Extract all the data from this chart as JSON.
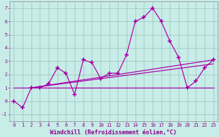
{
  "xlabel": "Windchill (Refroidissement éolien,°C)",
  "bg_color": "#c8ece8",
  "grid_color": "#a0c8c4",
  "line_color": "#aa00aa",
  "xlim": [
    -0.5,
    23.5
  ],
  "ylim": [
    -1.5,
    7.5
  ],
  "xticks": [
    0,
    1,
    2,
    3,
    4,
    5,
    6,
    7,
    8,
    9,
    10,
    11,
    12,
    13,
    14,
    15,
    16,
    17,
    18,
    19,
    20,
    21,
    22,
    23
  ],
  "yticks": [
    -1,
    0,
    1,
    2,
    3,
    4,
    5,
    6,
    7
  ],
  "scatter_x": [
    0,
    1,
    2,
    3,
    4,
    5,
    6,
    7,
    8,
    9,
    10,
    11,
    12,
    13,
    14,
    15,
    16,
    17,
    18,
    19,
    20,
    21,
    22,
    23
  ],
  "scatter_y": [
    0.0,
    -0.5,
    1.0,
    1.0,
    1.3,
    2.5,
    2.1,
    0.5,
    3.1,
    2.9,
    1.7,
    2.1,
    2.1,
    3.5,
    6.0,
    6.3,
    7.0,
    6.0,
    4.5,
    3.3,
    1.0,
    1.5,
    2.5,
    3.1
  ],
  "trend1_x": [
    0,
    23
  ],
  "trend1_y": [
    1.0,
    1.0
  ],
  "trend2_x": [
    2,
    23
  ],
  "trend2_y": [
    1.0,
    2.8
  ],
  "trend3_x": [
    2,
    23
  ],
  "trend3_y": [
    1.0,
    3.1
  ]
}
